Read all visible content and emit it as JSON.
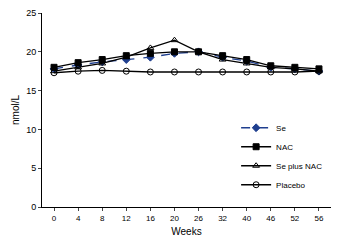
{
  "chart_data": {
    "type": "line",
    "x_label": "Weeks",
    "y_label": "nmol/L",
    "categories": [
      "0",
      "4",
      "8",
      "12",
      "16",
      "20",
      "26",
      "32",
      "40",
      "46",
      "52",
      "56"
    ],
    "series": [
      {
        "name": "Se",
        "color": "#1f3f8f",
        "marker": "diamond",
        "line_style": "dashed",
        "values": [
          17.8,
          18.3,
          18.7,
          19.0,
          19.3,
          19.8,
          20.0,
          19.3,
          18.8,
          18.0,
          17.8,
          17.5
        ]
      },
      {
        "name": "NAC",
        "color": "#000000",
        "marker": "square",
        "line_style": "solid",
        "values": [
          18.0,
          18.6,
          19.0,
          19.5,
          19.8,
          20.0,
          20.0,
          19.5,
          19.0,
          18.2,
          18.0,
          17.8
        ]
      },
      {
        "name": "Se plus NAC",
        "color": "#000000",
        "marker": "triangle-up-open",
        "line_style": "solid",
        "values": [
          17.5,
          18.0,
          18.5,
          19.3,
          20.5,
          21.5,
          20.0,
          19.0,
          18.5,
          18.0,
          17.8,
          17.5
        ]
      },
      {
        "name": "Placebo",
        "color": "#000000",
        "marker": "circle-open",
        "line_style": "solid",
        "values": [
          17.3,
          17.5,
          17.6,
          17.5,
          17.4,
          17.4,
          17.4,
          17.4,
          17.4,
          17.4,
          17.4,
          17.5
        ]
      }
    ],
    "ylim": [
      0,
      25
    ],
    "yticks": [
      0,
      5,
      10,
      15,
      20,
      25
    ],
    "grid": false,
    "legend": "lower right"
  }
}
